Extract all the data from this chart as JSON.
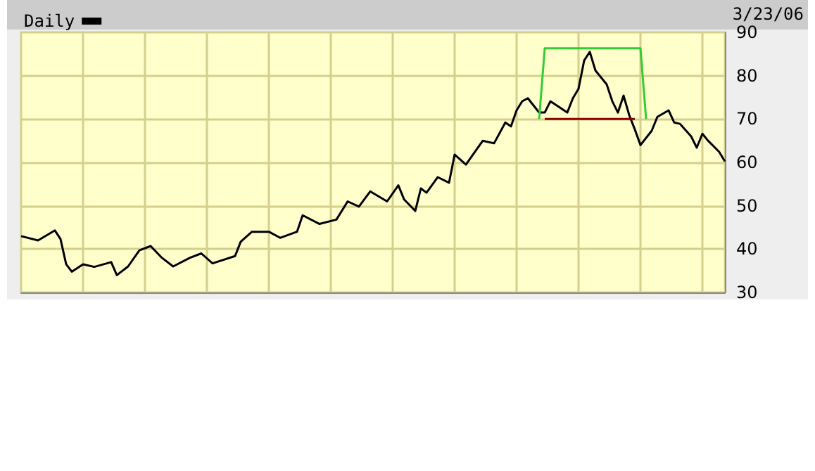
{
  "chart_data": {
    "type": "line",
    "annotations": [
      "3/23/06"
    ],
    "categories": [
      null,
      null,
      null,
      null,
      null,
      null,
      null,
      null,
      null,
      null,
      null,
      null,
      null,
      null,
      null,
      null,
      null,
      null,
      null,
      null,
      null,
      null,
      null,
      null,
      null,
      null,
      null,
      null,
      null,
      null,
      null,
      null,
      null,
      null,
      null,
      null,
      null,
      null,
      null,
      null,
      null,
      null,
      null,
      null,
      null,
      null,
      null,
      null,
      null,
      null,
      null,
      null,
      null,
      null,
      null,
      null,
      null,
      null,
      null,
      null,
      null,
      null,
      null,
      null,
      null,
      null,
      null,
      null,
      null,
      null,
      null,
      null,
      null,
      null,
      null,
      null,
      null,
      null,
      null,
      null,
      null,
      null,
      null,
      null,
      null,
      null,
      null,
      null,
      null,
      null,
      null,
      null,
      null,
      null,
      null,
      null,
      null,
      null,
      null,
      null,
      null,
      null,
      null,
      null,
      null,
      null,
      null,
      null,
      null,
      null,
      null,
      null,
      null,
      null,
      null,
      null,
      null,
      null,
      null,
      null,
      null,
      null,
      null,
      null,
      null,
      null
    ],
    "ylim": [
      30,
      90
    ],
    "yticks": [
      30,
      40,
      50,
      60,
      70,
      80,
      90
    ],
    "grid": true,
    "legend": "top left",
    "tick_labels": "y",
    "series": [
      {
        "name": "Daily",
        "color": "#000000",
        "values": [
          43.0,
          null,
          null,
          42.0,
          null,
          null,
          44.3,
          42.3,
          36.5,
          34.8,
          null,
          36.5,
          null,
          35.9,
          null,
          null,
          37.0,
          34.0,
          null,
          36.0,
          null,
          39.7,
          null,
          40.7,
          null,
          38.0,
          null,
          36.0,
          null,
          null,
          38.0,
          null,
          39.0,
          null,
          36.7,
          null,
          null,
          null,
          38.4,
          41.7,
          null,
          44.0,
          null,
          null,
          44.0,
          null,
          42.6,
          null,
          null,
          44.0,
          47.8,
          null,
          null,
          45.8,
          null,
          null,
          46.8,
          null,
          51.0,
          null,
          49.8,
          null,
          53.3,
          null,
          null,
          51.0,
          null,
          54.7,
          51.5,
          null,
          48.8,
          54.0,
          53.0,
          null,
          56.6,
          null,
          55.3,
          61.8,
          null,
          59.5,
          null,
          null,
          65.0,
          null,
          64.4,
          null,
          69.2,
          68.3,
          72.0,
          74.1,
          74.8,
          null,
          71.5,
          71.5,
          74.1,
          null,
          null,
          71.5,
          74.8,
          77.0,
          83.5,
          85.5,
          81.2,
          null,
          78.0,
          74.1,
          71.5,
          75.4,
          70.9,
          67.6,
          64.0,
          null,
          67.3,
          70.5,
          null,
          72.0,
          69.2,
          68.9,
          null,
          66.0,
          63.4,
          66.6,
          65.0,
          null,
          62.4,
          60.2
        ]
      },
      {
        "color": "#33cc33",
        "values": [
          null,
          null,
          null,
          null,
          null,
          null,
          null,
          null,
          null,
          null,
          null,
          null,
          null,
          null,
          null,
          null,
          null,
          null,
          null,
          null,
          null,
          null,
          null,
          null,
          null,
          null,
          null,
          null,
          null,
          null,
          null,
          null,
          null,
          null,
          null,
          null,
          null,
          null,
          null,
          null,
          null,
          null,
          null,
          null,
          null,
          null,
          null,
          null,
          null,
          null,
          null,
          null,
          null,
          null,
          null,
          null,
          null,
          null,
          null,
          null,
          null,
          null,
          null,
          null,
          null,
          null,
          null,
          null,
          null,
          null,
          null,
          null,
          null,
          null,
          null,
          null,
          null,
          null,
          null,
          null,
          null,
          null,
          null,
          null,
          null,
          null,
          null,
          null,
          null,
          null,
          null,
          null,
          70,
          86.3,
          null,
          null,
          null,
          null,
          null,
          null,
          null,
          null,
          null,
          null,
          null,
          null,
          null,
          null,
          null,
          null,
          86.3,
          70,
          null,
          null,
          null,
          null,
          null,
          null,
          null,
          null,
          null,
          null,
          null,
          null,
          null,
          null
        ]
      },
      {
        "color": "#8b0000",
        "values": [
          null,
          null,
          null,
          null,
          null,
          null,
          null,
          null,
          null,
          null,
          null,
          null,
          null,
          null,
          null,
          null,
          null,
          null,
          null,
          null,
          null,
          null,
          null,
          null,
          null,
          null,
          null,
          null,
          null,
          null,
          null,
          null,
          null,
          null,
          null,
          null,
          null,
          null,
          null,
          null,
          null,
          null,
          null,
          null,
          null,
          null,
          null,
          null,
          null,
          null,
          null,
          null,
          null,
          null,
          null,
          null,
          null,
          null,
          null,
          null,
          null,
          null,
          null,
          null,
          null,
          null,
          null,
          null,
          null,
          null,
          null,
          null,
          null,
          null,
          null,
          null,
          null,
          null,
          null,
          null,
          null,
          null,
          null,
          null,
          null,
          null,
          null,
          null,
          null,
          null,
          null,
          null,
          null,
          70,
          null,
          null,
          null,
          null,
          null,
          null,
          null,
          null,
          null,
          null,
          null,
          null,
          null,
          null,
          null,
          70,
          null,
          null,
          null,
          null,
          null,
          null,
          null,
          null,
          null,
          null,
          null,
          null,
          null,
          null,
          null,
          null
        ]
      }
    ]
  }
}
